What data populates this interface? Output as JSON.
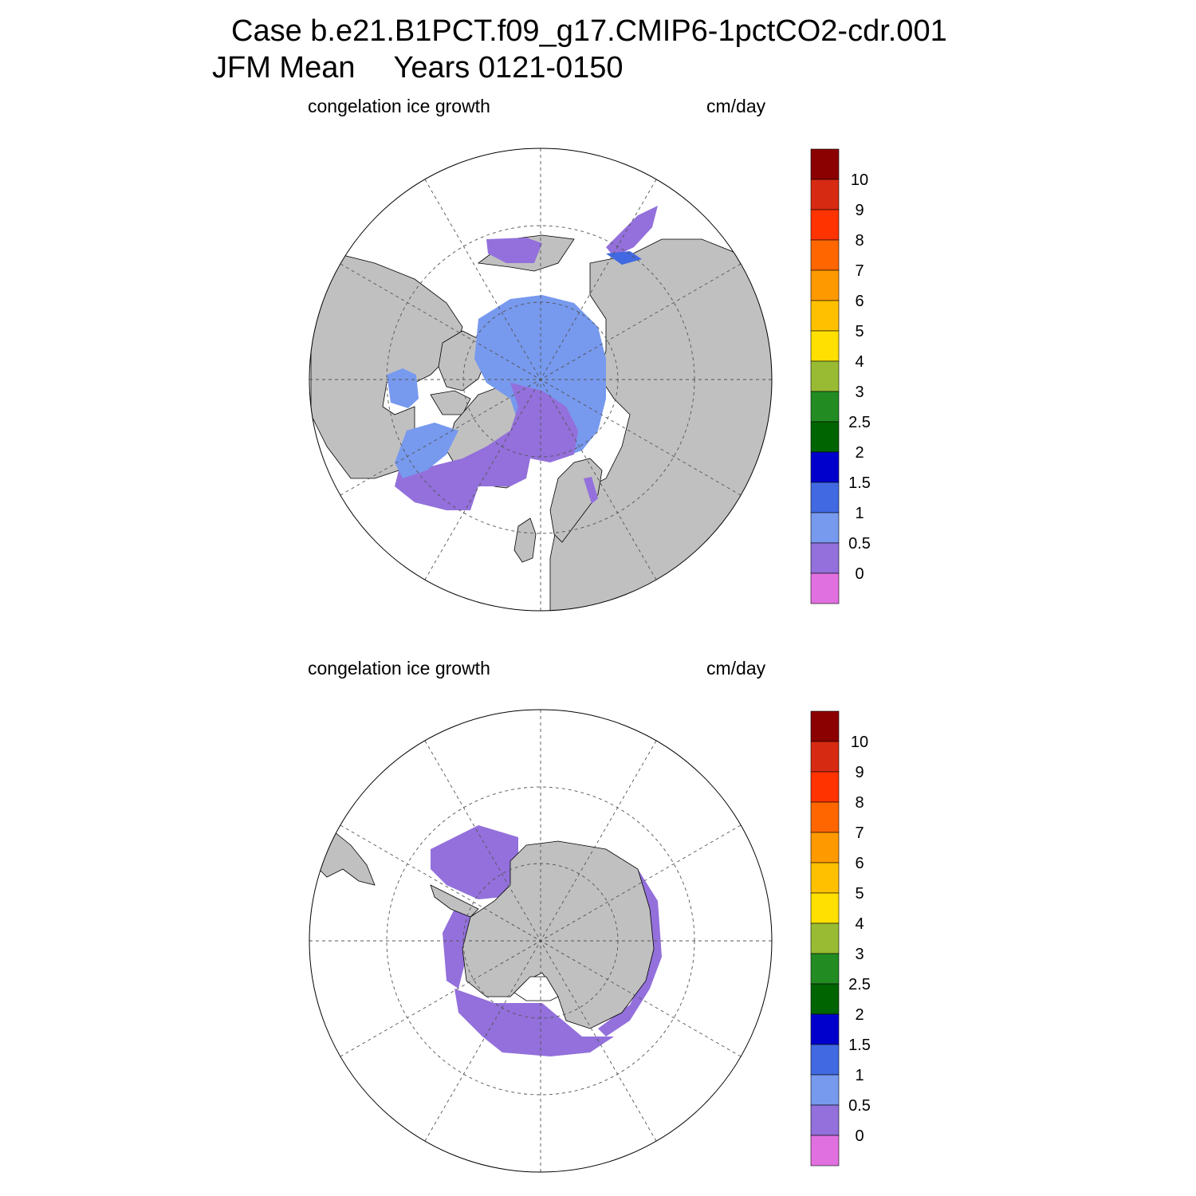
{
  "title": {
    "line1": "Case b.e21.B1PCT.f09_g17.CMIP6-1pctCO2-cdr.001",
    "line2_period": "JFM Mean",
    "line2_years": "Years 0121-0150"
  },
  "panels": [
    {
      "id": "north",
      "hemisphere": "Northern",
      "left_label": "congelation ice growth",
      "right_label": "cm/day"
    },
    {
      "id": "south",
      "hemisphere": "Southern",
      "left_label": "congelation ice growth",
      "right_label": "cm/day"
    }
  ],
  "colorbar": {
    "units": "cm/day",
    "levels": [
      "10",
      "9",
      "8",
      "7",
      "6",
      "5",
      "4",
      "3",
      "2.5",
      "2",
      "1.5",
      "1",
      "0.5",
      "0"
    ],
    "colors": [
      "#8b0000",
      "#d62a12",
      "#ff3300",
      "#ff6600",
      "#ff9900",
      "#ffc000",
      "#ffe000",
      "#99bb33",
      "#228b22",
      "#006400",
      "#0000cd",
      "#4169e1",
      "#7799ee",
      "#9370db",
      "#e070e0"
    ]
  },
  "colors": {
    "land": "#c0c0c0",
    "ocean": "#ffffff",
    "ice_0_to_0_5": "#9370db",
    "ice_0_5_to_1": "#7799ee",
    "ice_1_to_1_5": "#4169e1",
    "ice_1_5_to_2": "#0000cd"
  }
}
